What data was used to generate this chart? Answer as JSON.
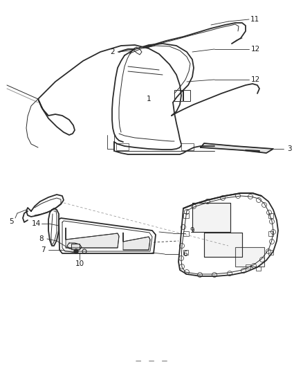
{
  "bg_color": "#ffffff",
  "line_color": "#2a2a2a",
  "label_color": "#1a1a1a",
  "figsize": [
    4.38,
    5.33
  ],
  "dpi": 100,
  "lw_main": 1.3,
  "lw_thin": 0.7,
  "lw_callout": 0.6,
  "font_size": 7.5
}
